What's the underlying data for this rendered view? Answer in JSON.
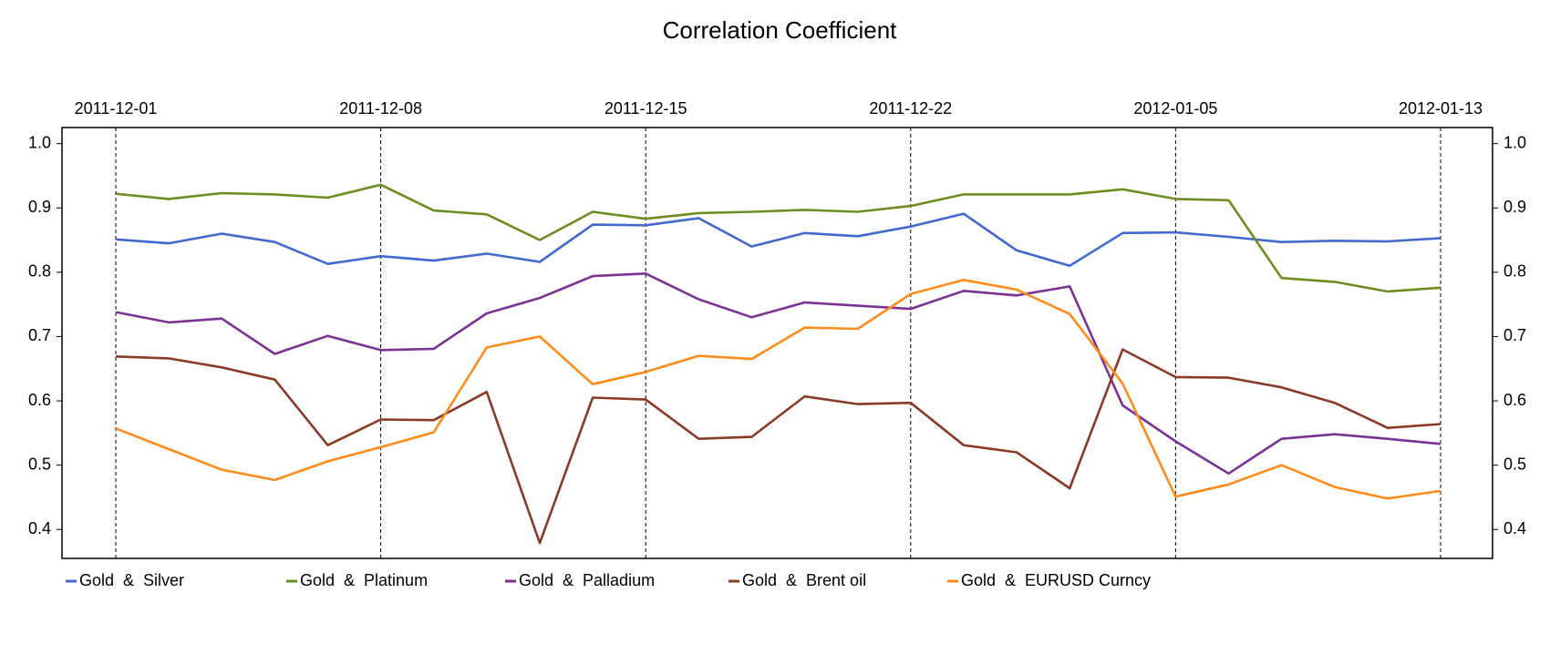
{
  "chart_data": {
    "type": "line",
    "title": "Correlation Coefficient",
    "categories": [
      "2011-12-01",
      null,
      null,
      null,
      null,
      "2011-12-08",
      null,
      null,
      null,
      null,
      "2011-12-15",
      null,
      null,
      null,
      null,
      "2011-12-22",
      null,
      null,
      null,
      null,
      "2012-01-05",
      null,
      null,
      null,
      null,
      "2012-01-13"
    ],
    "series": [
      {
        "name": "Gold  &  Silver",
        "color": "#4169d0",
        "values": [
          0.851,
          0.845,
          0.86,
          0.847,
          0.813,
          0.825,
          0.818,
          0.829,
          0.816,
          0.874,
          0.873,
          0.884,
          0.84,
          0.861,
          0.856,
          0.871,
          0.891,
          0.834,
          0.81,
          0.861,
          0.862,
          0.855,
          0.847,
          0.849,
          0.848,
          0.853
        ]
      },
      {
        "name": "Gold  &  Platinum",
        "color": "#6b8e23",
        "values": [
          0.922,
          0.914,
          0.923,
          0.921,
          0.916,
          0.936,
          0.896,
          0.89,
          0.85,
          0.894,
          0.883,
          0.892,
          0.894,
          0.897,
          0.894,
          0.903,
          0.921,
          0.921,
          0.921,
          0.929,
          0.914,
          0.912,
          0.791,
          0.785,
          0.77,
          0.776
        ]
      },
      {
        "name": "Gold  &  Palladium",
        "color": "#7b3294",
        "values": [
          0.738,
          0.722,
          0.728,
          0.673,
          0.701,
          0.679,
          0.681,
          0.736,
          0.76,
          0.794,
          0.798,
          0.758,
          0.73,
          0.753,
          0.748,
          0.743,
          0.771,
          0.764,
          0.778,
          0.593,
          0.537,
          0.487,
          0.541,
          0.548,
          0.541,
          0.533
        ]
      },
      {
        "name": "Gold  &  Brent oil",
        "color": "#8b3a26",
        "values": [
          0.669,
          0.666,
          0.652,
          0.633,
          0.531,
          0.571,
          0.57,
          0.614,
          0.379,
          0.605,
          0.602,
          0.541,
          0.544,
          0.607,
          0.595,
          0.597,
          0.531,
          0.52,
          0.464,
          0.68,
          0.637,
          0.636,
          0.621,
          0.597,
          0.558,
          0.564
        ]
      },
      {
        "name": "Gold  &  EURUSD Curncy",
        "color": "#ff8c1a",
        "values": [
          0.557,
          0.525,
          0.493,
          0.477,
          0.506,
          0.528,
          0.551,
          0.683,
          0.7,
          0.626,
          0.645,
          0.67,
          0.665,
          0.714,
          0.712,
          0.766,
          0.788,
          0.773,
          0.735,
          0.627,
          0.451,
          0.47,
          0.5,
          0.466,
          0.448,
          0.46
        ]
      }
    ],
    "ylim": [
      0.355,
      1.025
    ],
    "yticks": [
      0.4,
      0.5,
      0.6,
      0.7,
      0.8,
      0.9,
      {
        "value": 1.0,
        "label": "1.0"
      }
    ],
    "legend": "bottom"
  }
}
